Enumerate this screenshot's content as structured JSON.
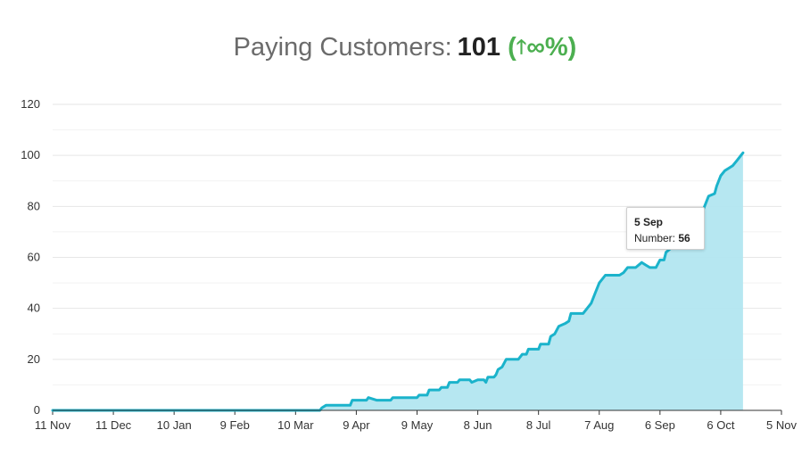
{
  "header": {
    "label": "Paying Customers:",
    "value": "101",
    "change_open": "(",
    "change_icon": "arrow-up-icon",
    "change_text": "∞%)",
    "colors": {
      "label": "#6b6b6b",
      "value": "#222222",
      "change": "#4caf50"
    }
  },
  "tooltip": {
    "date": "5 Sep",
    "metric_label": "Number:",
    "metric_value": "56"
  },
  "chart_data": {
    "type": "area",
    "title": "",
    "xlabel": "",
    "ylabel": "",
    "ylim": [
      0,
      120
    ],
    "y_ticks": [
      0,
      20,
      40,
      60,
      80,
      100,
      120
    ],
    "x_ticks": [
      "11 Nov",
      "11 Dec",
      "10 Jan",
      "9 Feb",
      "10 Mar",
      "9 Apr",
      "9 May",
      "8 Jun",
      "8 Jul",
      "7 Aug",
      "6 Sep",
      "6 Oct",
      "5 Nov"
    ],
    "grid": true,
    "line_color": "#1bb3cb",
    "fill_color": "#b2e6f0",
    "x_day_span": [
      0,
      360
    ],
    "series": [
      {
        "values": [
          [
            0,
            0
          ],
          [
            132,
            0
          ],
          [
            133,
            1
          ],
          [
            135,
            2
          ],
          [
            147,
            2
          ],
          [
            148,
            4
          ],
          [
            155,
            4
          ],
          [
            156,
            5
          ],
          [
            160,
            4
          ],
          [
            167,
            4
          ],
          [
            168,
            5
          ],
          [
            180,
            5
          ],
          [
            181,
            6
          ],
          [
            185,
            6
          ],
          [
            186,
            8
          ],
          [
            191,
            8
          ],
          [
            192,
            9
          ],
          [
            195,
            9
          ],
          [
            196,
            11
          ],
          [
            200,
            11
          ],
          [
            201,
            12
          ],
          [
            206,
            12
          ],
          [
            207,
            11
          ],
          [
            210,
            12
          ],
          [
            213,
            12
          ],
          [
            214,
            11
          ],
          [
            215,
            13
          ],
          [
            218,
            13
          ],
          [
            219,
            14
          ],
          [
            220,
            16
          ],
          [
            222,
            17
          ],
          [
            224,
            20
          ],
          [
            230,
            20
          ],
          [
            232,
            22
          ],
          [
            234,
            22
          ],
          [
            235,
            24
          ],
          [
            240,
            24
          ],
          [
            241,
            26
          ],
          [
            245,
            26
          ],
          [
            246,
            29
          ],
          [
            248,
            30
          ],
          [
            250,
            33
          ],
          [
            253,
            34
          ],
          [
            255,
            35
          ],
          [
            256,
            38
          ],
          [
            262,
            38
          ],
          [
            266,
            42
          ],
          [
            268,
            46
          ],
          [
            270,
            50
          ],
          [
            273,
            53
          ],
          [
            280,
            53
          ],
          [
            282,
            54
          ],
          [
            284,
            56
          ],
          [
            288,
            56
          ],
          [
            291,
            58
          ],
          [
            293,
            57
          ],
          [
            295,
            56
          ],
          [
            298,
            56
          ],
          [
            300,
            59
          ],
          [
            302,
            59
          ],
          [
            303,
            62
          ],
          [
            306,
            64
          ],
          [
            308,
            66
          ],
          [
            310,
            67
          ],
          [
            313,
            68
          ],
          [
            316,
            73
          ],
          [
            318,
            75
          ],
          [
            320,
            76
          ],
          [
            322,
            80
          ],
          [
            324,
            84
          ],
          [
            327,
            85
          ],
          [
            328,
            88
          ],
          [
            330,
            92
          ],
          [
            332,
            94
          ],
          [
            334,
            95
          ],
          [
            336,
            96
          ],
          [
            338,
            98
          ],
          [
            340,
            100
          ],
          [
            341,
            101
          ]
        ]
      }
    ],
    "highlight_point": [
      283,
      56
    ]
  }
}
